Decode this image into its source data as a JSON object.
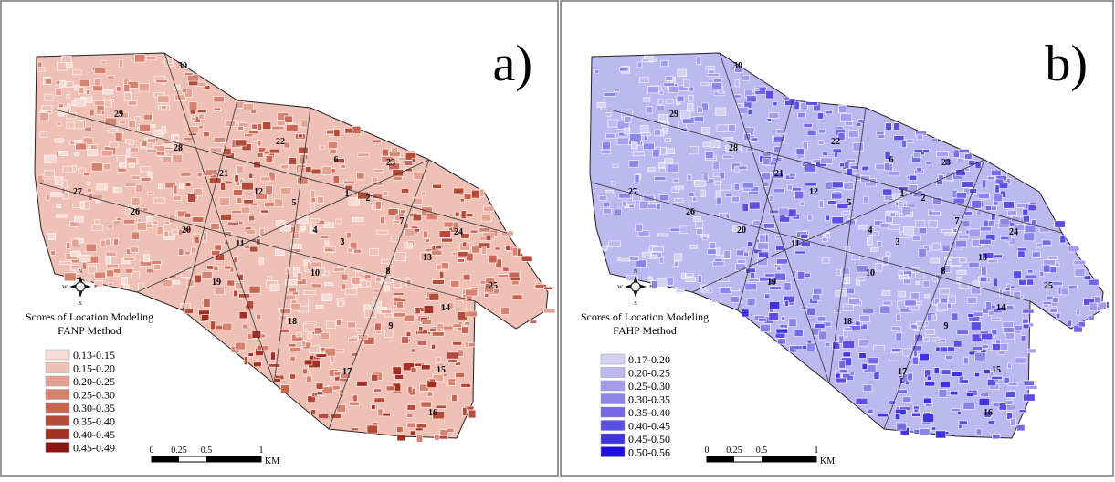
{
  "panels": [
    {
      "label": "a)",
      "legend_title": [
        "Scores of Location Modeling",
        "FANP Method"
      ],
      "legend": [
        {
          "label": "0.13-0.15",
          "color": "#f6dcd6"
        },
        {
          "label": "0.15-0.20",
          "color": "#efc0b6"
        },
        {
          "label": "0.20-0.25",
          "color": "#e4a293"
        },
        {
          "label": "0.25-0.30",
          "color": "#d68270"
        },
        {
          "label": "0.30-0.35",
          "color": "#c86552"
        },
        {
          "label": "0.35-0.40",
          "color": "#b54a38"
        },
        {
          "label": "0.40-0.45",
          "color": "#a32f22"
        },
        {
          "label": "0.45-0.49",
          "color": "#8b1414"
        }
      ]
    },
    {
      "label": "b)",
      "legend_title": [
        "Scores of Location Modeling",
        "FAHP Method"
      ],
      "legend": [
        {
          "label": "0.17-0.20",
          "color": "#d3d1f4"
        },
        {
          "label": "0.20-0.25",
          "color": "#bcb8f0"
        },
        {
          "label": "0.25-0.30",
          "color": "#a49dee"
        },
        {
          "label": "0.30-0.35",
          "color": "#8d84ea"
        },
        {
          "label": "0.35-0.40",
          "color": "#7468e6"
        },
        {
          "label": "0.40-0.45",
          "color": "#5b4ee3"
        },
        {
          "label": "0.45-0.50",
          "color": "#4233e0"
        },
        {
          "label": "0.50-0.56",
          "color": "#1d10dc"
        }
      ]
    }
  ],
  "district_labels": [
    "30",
    "29",
    "28",
    "27",
    "26",
    "22",
    "21",
    "20",
    "12",
    "11",
    "19",
    "18",
    "6",
    "23",
    "1",
    "2",
    "5",
    "4",
    "3",
    "10",
    "8",
    "9",
    "7",
    "13",
    "14",
    "15",
    "16",
    "17",
    "24",
    "25"
  ],
  "scale": {
    "ticks": [
      "0",
      "0.25",
      "0.5",
      "1"
    ],
    "unit": "KM"
  },
  "compass": {
    "n": "N",
    "e": "E",
    "s": "S",
    "w": "W"
  }
}
